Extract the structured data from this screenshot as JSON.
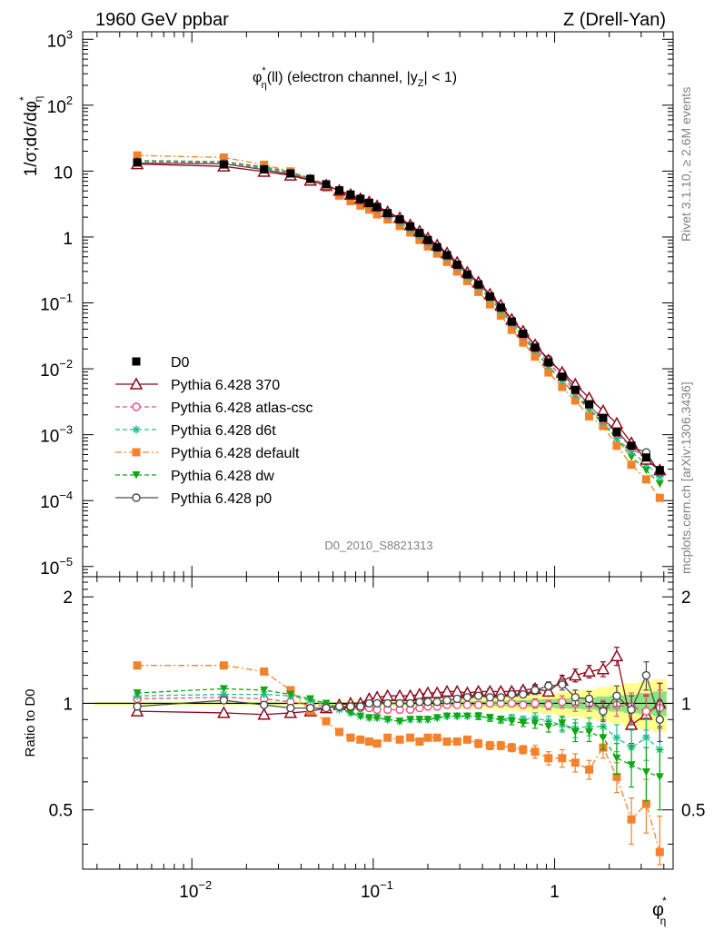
{
  "header": {
    "left": "1960 GeV ppbar",
    "right": "Z (Drell-Yan)",
    "side_rivet": "Rivet 3.1.10, ≥ 2.6M events",
    "side_mcplots": "mcplots.cern.ch [arXiv:1306.3436]",
    "analysis": "D0_2010_S8821313"
  },
  "colors": {
    "D0": "#000000",
    "370": "#8b0a1e",
    "atlas-csc": "#e8507a",
    "d6t": "#1fbf8f",
    "default": "#f5822a",
    "dw": "#10a810",
    "p0": "#4a4a4a"
  },
  "chart_data": [
    {
      "type": "line",
      "title": "φ*η(ll) (electron channel, |yZ| < 1)",
      "title_parts": {
        "phi": "φ",
        "star": "*",
        "sub_eta": "η",
        "rest1": "(ll) (electron channel, |y",
        "sub_z": "Z",
        "rest2": "| < 1)"
      },
      "ylabel": "1/σ;dσ/dφ*η",
      "ylabel_parts": {
        "main": "1/σ;dσ/dφ",
        "star": "*",
        "sub": "η"
      },
      "xlabel": "φ*η",
      "xlabel_parts": {
        "phi": "φ",
        "star": "*",
        "sub": "η"
      },
      "xscale": "log",
      "yscale": "log",
      "xlim": [
        0.0025,
        4.5
      ],
      "ylim": [
        7e-06,
        1300
      ],
      "x_tick_labels": [
        {
          "base": "10",
          "exp": "−2",
          "value": 0.01
        },
        {
          "base": "10",
          "exp": "−1",
          "value": 0.1
        },
        {
          "base": "",
          "exp": "",
          "value": 1,
          "text": "1"
        }
      ],
      "y_tick_labels": [
        {
          "base": "10",
          "exp": "3",
          "value": 1000
        },
        {
          "base": "10",
          "exp": "2",
          "value": 100
        },
        {
          "base": "",
          "exp": "",
          "value": 10,
          "text": "10"
        },
        {
          "base": "",
          "exp": "",
          "value": 1,
          "text": "1"
        },
        {
          "base": "10",
          "exp": "−1",
          "value": 0.1
        },
        {
          "base": "10",
          "exp": "−2",
          "value": 0.01
        },
        {
          "base": "10",
          "exp": "−3",
          "value": 0.001
        },
        {
          "base": "10",
          "exp": "−4",
          "value": 0.0001
        },
        {
          "base": "10",
          "exp": "−5",
          "value": 1e-05
        }
      ],
      "legend_position": "left",
      "x": [
        0.005,
        0.015,
        0.025,
        0.035,
        0.045,
        0.055,
        0.065,
        0.075,
        0.085,
        0.095,
        0.105,
        0.12,
        0.14,
        0.16,
        0.18,
        0.2,
        0.225,
        0.255,
        0.29,
        0.33,
        0.38,
        0.44,
        0.505,
        0.58,
        0.67,
        0.78,
        0.925,
        1.1,
        1.3,
        1.55,
        1.85,
        2.2,
        2.65,
        3.2,
        3.8
      ],
      "series": [
        {
          "name": "D0",
          "key": "D0",
          "marker": "square",
          "linestyle": "none",
          "values": [
            13.5,
            12.6,
            10.6,
            9.2,
            7.6,
            6.3,
            5.1,
            4.4,
            3.8,
            3.3,
            2.85,
            2.3,
            1.85,
            1.45,
            1.15,
            0.9,
            0.7,
            0.53,
            0.38,
            0.27,
            0.19,
            0.125,
            0.085,
            0.052,
            0.034,
            0.021,
            0.0125,
            0.0076,
            0.0048,
            0.0029,
            0.0018,
            0.00109,
            0.00068,
            0.00045,
            0.00029
          ]
        },
        {
          "name": "Pythia 6.428 370",
          "key": "370",
          "marker": "triangle",
          "linestyle": "solid",
          "values": [
            12.8,
            11.8,
            9.8,
            8.6,
            7.2,
            6.1,
            5.05,
            4.4,
            3.8,
            3.4,
            2.95,
            2.4,
            1.95,
            1.52,
            1.22,
            0.96,
            0.75,
            0.57,
            0.41,
            0.29,
            0.205,
            0.135,
            0.092,
            0.056,
            0.037,
            0.023,
            0.0135,
            0.0088,
            0.0058,
            0.0036,
            0.0023,
            0.00148,
            0.00075,
            0.00042,
            0.00029
          ]
        },
        {
          "name": "Pythia 6.428 atlas-csc",
          "key": "atlas-csc",
          "marker": "circle-open",
          "linestyle": "dashed",
          "values": [
            14.0,
            13.2,
            10.9,
            9.25,
            7.6,
            6.2,
            5.0,
            4.3,
            3.7,
            3.2,
            2.75,
            2.2,
            1.78,
            1.4,
            1.11,
            0.87,
            0.68,
            0.52,
            0.37,
            0.265,
            0.187,
            0.123,
            0.084,
            0.051,
            0.033,
            0.0205,
            0.0124,
            0.0075,
            0.0046,
            0.0028,
            0.0017,
            0.00104,
            0.00065,
            0.00042,
            0.00028
          ]
        },
        {
          "name": "Pythia 6.428 d6t",
          "key": "d6t",
          "marker": "star",
          "linestyle": "dashed",
          "values": [
            14.3,
            13.6,
            11.2,
            9.5,
            7.7,
            6.2,
            4.9,
            4.15,
            3.5,
            3.0,
            2.6,
            2.05,
            1.65,
            1.3,
            1.03,
            0.81,
            0.64,
            0.49,
            0.35,
            0.25,
            0.175,
            0.114,
            0.077,
            0.0475,
            0.031,
            0.0192,
            0.0111,
            0.0066,
            0.0041,
            0.0025,
            0.00155,
            0.00088,
            0.00055,
            0.00036,
            0.00023
          ]
        },
        {
          "name": "Pythia 6.428 default",
          "key": "default",
          "marker": "square",
          "linestyle": "dashdot",
          "values": [
            17.3,
            16.1,
            12.5,
            9.9,
            7.2,
            5.6,
            4.25,
            3.5,
            3.0,
            2.6,
            2.2,
            1.85,
            1.47,
            1.17,
            0.9,
            0.72,
            0.56,
            0.42,
            0.3,
            0.215,
            0.147,
            0.095,
            0.064,
            0.039,
            0.025,
            0.0153,
            0.0088,
            0.0053,
            0.0033,
            0.0019,
            0.00135,
            0.00068,
            0.00035,
            0.00021,
            0.00011
          ]
        },
        {
          "name": "Pythia 6.428 dw",
          "key": "dw",
          "marker": "triangle-down",
          "linestyle": "dashed",
          "values": [
            14.5,
            13.9,
            11.6,
            9.7,
            7.8,
            6.3,
            4.95,
            4.15,
            3.5,
            3.0,
            2.6,
            2.05,
            1.65,
            1.3,
            1.03,
            0.81,
            0.64,
            0.49,
            0.35,
            0.25,
            0.175,
            0.114,
            0.077,
            0.0465,
            0.03,
            0.0185,
            0.0107,
            0.0067,
            0.004,
            0.0024,
            0.00145,
            0.00088,
            0.00046,
            0.00029,
            0.00018
          ]
        },
        {
          "name": "Pythia 6.428 p0",
          "key": "p0",
          "marker": "circle-open",
          "linestyle": "solid",
          "values": [
            13.2,
            12.9,
            10.5,
            8.9,
            7.4,
            6.1,
            5.0,
            4.3,
            3.75,
            3.3,
            2.85,
            2.3,
            1.85,
            1.45,
            1.16,
            0.91,
            0.71,
            0.54,
            0.39,
            0.28,
            0.2,
            0.13,
            0.088,
            0.055,
            0.036,
            0.023,
            0.014,
            0.0086,
            0.005,
            0.0028,
            0.0017,
            0.00115,
            0.00065,
            0.00054,
            0.00026
          ]
        }
      ]
    },
    {
      "type": "line",
      "title": "",
      "ylabel": "Ratio to D0",
      "xscale": "log",
      "ylim": [
        0.34,
        2.28
      ],
      "y_tick_labels": [
        "0.5",
        "1",
        "2"
      ],
      "y_ticks": [
        0.5,
        1,
        2
      ],
      "band": {
        "x": [
          0.005,
          0.015,
          0.025,
          0.035,
          0.045,
          0.055,
          0.065,
          0.075,
          0.085,
          0.095,
          0.105,
          0.12,
          0.14,
          0.16,
          0.18,
          0.2,
          0.225,
          0.255,
          0.29,
          0.33,
          0.38,
          0.44,
          0.505,
          0.58,
          0.67,
          0.78,
          0.925,
          1.1,
          1.3,
          1.55,
          1.85,
          2.2,
          2.65,
          3.2,
          3.8
        ],
        "stat_err": [
          0.005,
          0.005,
          0.006,
          0.006,
          0.006,
          0.006,
          0.007,
          0.007,
          0.007,
          0.007,
          0.008,
          0.008,
          0.009,
          0.01,
          0.01,
          0.011,
          0.011,
          0.012,
          0.013,
          0.014,
          0.015,
          0.016,
          0.018,
          0.02,
          0.022,
          0.025,
          0.028,
          0.032,
          0.036,
          0.04,
          0.046,
          0.052,
          0.06,
          0.07,
          0.08
        ],
        "tot_err": [
          0.012,
          0.012,
          0.013,
          0.013,
          0.013,
          0.014,
          0.014,
          0.015,
          0.015,
          0.016,
          0.017,
          0.018,
          0.019,
          0.02,
          0.022,
          0.024,
          0.026,
          0.028,
          0.03,
          0.032,
          0.035,
          0.038,
          0.042,
          0.046,
          0.052,
          0.058,
          0.065,
          0.075,
          0.085,
          0.095,
          0.11,
          0.125,
          0.14,
          0.155,
          0.17
        ]
      },
      "series": [
        {
          "key": "370",
          "name": "Pythia 6.428 370",
          "values": [
            0.95,
            0.94,
            0.93,
            0.94,
            0.95,
            0.97,
            0.99,
            1.0,
            1.0,
            1.03,
            1.04,
            1.05,
            1.05,
            1.05,
            1.06,
            1.07,
            1.07,
            1.08,
            1.08,
            1.07,
            1.08,
            1.08,
            1.08,
            1.08,
            1.09,
            1.1,
            1.08,
            1.16,
            1.2,
            1.23,
            1.25,
            1.36,
            0.87,
            0.93,
            1.0
          ],
          "err": [
            0.01,
            0.01,
            0.01,
            0.01,
            0.01,
            0.01,
            0.01,
            0.01,
            0.01,
            0.01,
            0.01,
            0.01,
            0.01,
            0.01,
            0.01,
            0.01,
            0.01,
            0.01,
            0.01,
            0.01,
            0.02,
            0.02,
            0.02,
            0.02,
            0.02,
            0.03,
            0.03,
            0.04,
            0.05,
            0.05,
            0.06,
            0.08,
            0.1,
            0.12,
            0.14
          ]
        },
        {
          "key": "atlas-csc",
          "name": "Pythia 6.428 atlas-csc",
          "values": [
            1.03,
            1.04,
            1.03,
            1.01,
            0.99,
            0.98,
            0.98,
            0.97,
            0.97,
            0.97,
            0.96,
            0.96,
            0.96,
            0.96,
            0.97,
            0.98,
            0.98,
            0.99,
            0.99,
            0.99,
            0.99,
            1.0,
            1.0,
            1.0,
            0.99,
            1.0,
            0.99,
            1.01,
            1.0,
            1.0,
            0.96,
            0.99,
            0.98,
            0.95,
            0.97
          ],
          "err": [
            0.01,
            0.01,
            0.01,
            0.01,
            0.01,
            0.01,
            0.01,
            0.01,
            0.01,
            0.01,
            0.01,
            0.01,
            0.01,
            0.01,
            0.01,
            0.01,
            0.01,
            0.01,
            0.01,
            0.01,
            0.02,
            0.02,
            0.02,
            0.02,
            0.02,
            0.03,
            0.03,
            0.04,
            0.05,
            0.05,
            0.06,
            0.07,
            0.09,
            0.11,
            0.12
          ]
        },
        {
          "key": "d6t",
          "name": "Pythia 6.428 d6t",
          "values": [
            1.05,
            1.06,
            1.06,
            1.05,
            1.02,
            0.99,
            0.96,
            0.94,
            0.92,
            0.91,
            0.91,
            0.9,
            0.89,
            0.9,
            0.9,
            0.9,
            0.91,
            0.92,
            0.92,
            0.92,
            0.92,
            0.91,
            0.9,
            0.91,
            0.9,
            0.91,
            0.89,
            0.87,
            0.85,
            0.86,
            0.86,
            0.8,
            0.75,
            0.8,
            0.74
          ],
          "err": [
            0.01,
            0.01,
            0.01,
            0.01,
            0.01,
            0.01,
            0.01,
            0.01,
            0.01,
            0.01,
            0.01,
            0.01,
            0.01,
            0.01,
            0.01,
            0.01,
            0.01,
            0.01,
            0.01,
            0.01,
            0.02,
            0.02,
            0.02,
            0.02,
            0.02,
            0.03,
            0.03,
            0.04,
            0.05,
            0.05,
            0.06,
            0.07,
            0.09,
            0.11,
            0.12
          ]
        },
        {
          "key": "default",
          "name": "Pythia 6.428 default",
          "values": [
            1.28,
            1.28,
            1.23,
            1.09,
            0.95,
            0.89,
            0.83,
            0.8,
            0.79,
            0.78,
            0.77,
            0.8,
            0.79,
            0.8,
            0.78,
            0.8,
            0.8,
            0.78,
            0.78,
            0.79,
            0.77,
            0.76,
            0.76,
            0.75,
            0.74,
            0.73,
            0.7,
            0.7,
            0.68,
            0.65,
            0.75,
            0.62,
            0.47,
            0.52,
            0.38
          ],
          "err": [
            0.01,
            0.01,
            0.01,
            0.01,
            0.01,
            0.01,
            0.01,
            0.01,
            0.01,
            0.01,
            0.01,
            0.01,
            0.01,
            0.01,
            0.01,
            0.01,
            0.01,
            0.01,
            0.01,
            0.01,
            0.02,
            0.02,
            0.02,
            0.02,
            0.02,
            0.03,
            0.03,
            0.04,
            0.04,
            0.04,
            0.05,
            0.06,
            0.07,
            0.09,
            0.1
          ]
        },
        {
          "key": "dw",
          "name": "Pythia 6.428 dw",
          "values": [
            1.07,
            1.1,
            1.09,
            1.06,
            1.03,
            1.0,
            0.97,
            0.94,
            0.92,
            0.91,
            0.91,
            0.9,
            0.89,
            0.9,
            0.9,
            0.9,
            0.91,
            0.92,
            0.92,
            0.92,
            0.92,
            0.91,
            0.9,
            0.89,
            0.88,
            0.88,
            0.86,
            0.88,
            0.83,
            0.83,
            0.8,
            0.7,
            0.67,
            0.64,
            0.62
          ],
          "err": [
            0.01,
            0.01,
            0.01,
            0.01,
            0.01,
            0.01,
            0.01,
            0.01,
            0.01,
            0.01,
            0.01,
            0.01,
            0.01,
            0.01,
            0.01,
            0.01,
            0.01,
            0.01,
            0.01,
            0.01,
            0.02,
            0.02,
            0.02,
            0.02,
            0.02,
            0.03,
            0.03,
            0.04,
            0.05,
            0.05,
            0.06,
            0.07,
            0.09,
            0.11,
            0.12
          ]
        },
        {
          "key": "p0",
          "name": "Pythia 6.428 p0",
          "values": [
            0.98,
            1.02,
            0.99,
            0.97,
            0.97,
            0.97,
            0.98,
            0.98,
            0.98,
            1.0,
            1.0,
            1.0,
            1.0,
            1.0,
            1.01,
            1.01,
            1.01,
            1.02,
            1.03,
            1.04,
            1.05,
            1.04,
            1.04,
            1.06,
            1.06,
            1.09,
            1.12,
            1.13,
            1.04,
            1.03,
            0.95,
            1.05,
            0.96,
            1.2,
            0.9
          ],
          "err": [
            0.01,
            0.01,
            0.01,
            0.01,
            0.01,
            0.01,
            0.01,
            0.01,
            0.01,
            0.01,
            0.01,
            0.01,
            0.01,
            0.01,
            0.01,
            0.01,
            0.01,
            0.01,
            0.01,
            0.01,
            0.02,
            0.02,
            0.02,
            0.02,
            0.02,
            0.03,
            0.03,
            0.04,
            0.05,
            0.05,
            0.06,
            0.07,
            0.09,
            0.11,
            0.12
          ]
        }
      ]
    }
  ]
}
